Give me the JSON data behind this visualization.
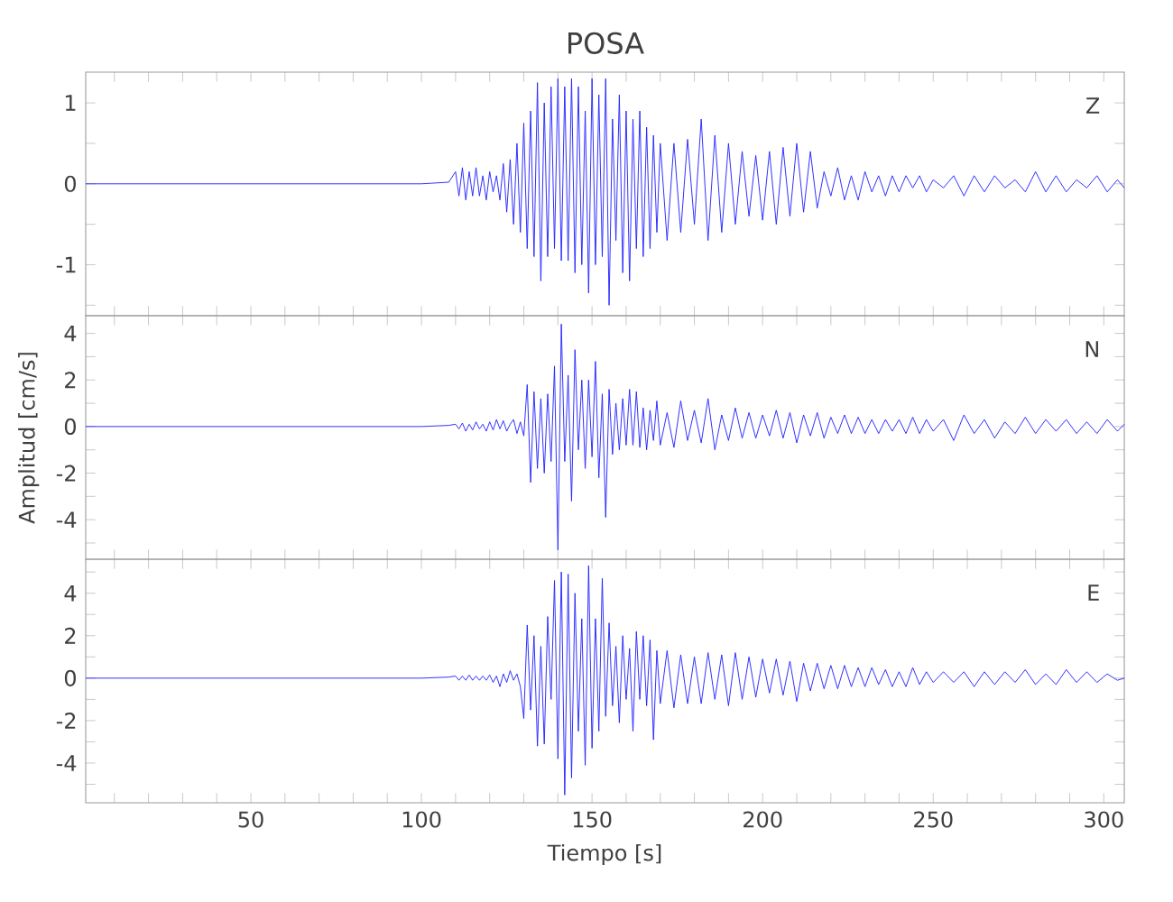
{
  "chart_data": [
    {
      "type": "line",
      "title": "POSA",
      "annotations": [
        "Z"
      ],
      "tick_labels": "y",
      "x": [
        1.6,
        20,
        40,
        60,
        80,
        100,
        108,
        110,
        111,
        112,
        113,
        114,
        115,
        116,
        117,
        118,
        119,
        120,
        121,
        122,
        123,
        124,
        125,
        126,
        127,
        128,
        129,
        130,
        131,
        132,
        133,
        134,
        135,
        136,
        137,
        138,
        139,
        140,
        141,
        142,
        143,
        144,
        145,
        146,
        147,
        148,
        149,
        150,
        151,
        152,
        153,
        154,
        155,
        156,
        157,
        158,
        159,
        160,
        161,
        162,
        163,
        164,
        165,
        166,
        167,
        168,
        169,
        170,
        172,
        174,
        176,
        178,
        180,
        182,
        184,
        186,
        188,
        190,
        192,
        194,
        196,
        198,
        200,
        202,
        204,
        206,
        208,
        210,
        212,
        214,
        216,
        218,
        220,
        222,
        224,
        226,
        228,
        230,
        232,
        234,
        236,
        238,
        240,
        242,
        244,
        246,
        248,
        250,
        253,
        256,
        259,
        262,
        265,
        268,
        271,
        274,
        277,
        280,
        283,
        286,
        289,
        292,
        295,
        298,
        301,
        304,
        306
      ],
      "series": [
        {
          "color": "#2222ff",
          "values": [
            0,
            0,
            0,
            0,
            0,
            0,
            0.02,
            0.15,
            -0.15,
            0.2,
            -0.2,
            0.15,
            -0.15,
            0.2,
            -0.15,
            0.1,
            -0.2,
            0.15,
            -0.1,
            0.1,
            -0.2,
            0.25,
            -0.35,
            0.3,
            -0.5,
            0.5,
            -0.6,
            0.75,
            -0.8,
            0.9,
            -0.9,
            1.25,
            -1.2,
            1.0,
            -0.9,
            1.2,
            -0.8,
            1.3,
            -0.95,
            1.2,
            -0.95,
            1.3,
            -1.1,
            1.2,
            -1.0,
            0.9,
            -1.35,
            1.3,
            -1.0,
            1.1,
            -0.9,
            1.3,
            -1.5,
            0.8,
            -0.7,
            1.1,
            -1.1,
            0.9,
            -1.2,
            0.8,
            -0.8,
            0.9,
            -0.9,
            0.7,
            -0.8,
            0.6,
            -0.6,
            0.5,
            -0.7,
            0.5,
            -0.6,
            0.55,
            -0.5,
            0.8,
            -0.7,
            0.6,
            -0.6,
            0.5,
            -0.5,
            0.4,
            -0.4,
            0.35,
            -0.45,
            0.4,
            -0.5,
            0.45,
            -0.4,
            0.5,
            -0.35,
            0.4,
            -0.3,
            0.15,
            -0.15,
            0.2,
            -0.2,
            0.1,
            -0.2,
            0.15,
            -0.1,
            0.1,
            -0.15,
            0.1,
            -0.1,
            0.1,
            -0.05,
            0.1,
            -0.1,
            0.05,
            -0.05,
            0.1,
            -0.15,
            0.1,
            -0.1,
            0.1,
            -0.05,
            0.05,
            -0.1,
            0.15,
            -0.1,
            0.1,
            -0.1,
            0.05,
            -0.05,
            0.1,
            -0.1,
            0.05,
            -0.05
          ]
        }
      ],
      "xlim": [
        1.6,
        306
      ],
      "ylim": [
        -1.63,
        1.38
      ],
      "xticks": [
        {
          "value": 10,
          "label": null
        },
        {
          "value": 20,
          "label": null
        },
        {
          "value": 30,
          "label": null
        },
        {
          "value": 40,
          "label": null
        },
        50,
        {
          "value": 60,
          "label": null
        },
        {
          "value": 70,
          "label": null
        },
        {
          "value": 80,
          "label": null
        },
        {
          "value": 90,
          "label": null
        },
        100,
        {
          "value": 110,
          "label": null
        },
        {
          "value": 120,
          "label": null
        },
        {
          "value": 130,
          "label": null
        },
        {
          "value": 140,
          "label": null
        },
        150,
        {
          "value": 160,
          "label": null
        },
        {
          "value": 170,
          "label": null
        },
        {
          "value": 180,
          "label": null
        },
        {
          "value": 190,
          "label": null
        },
        200,
        {
          "value": 210,
          "label": null
        },
        {
          "value": 220,
          "label": null
        },
        {
          "value": 230,
          "label": null
        },
        {
          "value": 240,
          "label": null
        },
        250,
        {
          "value": 260,
          "label": null
        },
        {
          "value": 270,
          "label": null
        },
        {
          "value": 280,
          "label": null
        },
        {
          "value": 290,
          "label": null
        },
        300
      ],
      "yticks": [
        {
          "value": -1.5,
          "label": null
        },
        -1,
        {
          "value": -0.5,
          "label": null
        },
        0,
        {
          "value": 0.5,
          "label": null
        },
        1
      ]
    },
    {
      "type": "line",
      "ylabel": "Amplitud [cm/s]",
      "annotations": [
        "N"
      ],
      "tick_labels": "y",
      "x": [
        1.6,
        20,
        40,
        60,
        80,
        100,
        108,
        110,
        111,
        112,
        113,
        114,
        115,
        116,
        117,
        118,
        119,
        120,
        121,
        122,
        123,
        124,
        125,
        126,
        127,
        128,
        129,
        130,
        131,
        132,
        133,
        134,
        135,
        136,
        137,
        138,
        139,
        140,
        141,
        142,
        143,
        144,
        145,
        146,
        147,
        148,
        149,
        150,
        151,
        152,
        153,
        154,
        155,
        156,
        157,
        158,
        159,
        160,
        161,
        162,
        163,
        164,
        165,
        166,
        167,
        168,
        169,
        170,
        172,
        174,
        176,
        178,
        180,
        182,
        184,
        186,
        188,
        190,
        192,
        194,
        196,
        198,
        200,
        202,
        204,
        206,
        208,
        210,
        212,
        214,
        216,
        218,
        220,
        222,
        224,
        226,
        228,
        230,
        232,
        234,
        236,
        238,
        240,
        242,
        244,
        246,
        248,
        250,
        253,
        256,
        259,
        262,
        265,
        268,
        271,
        274,
        277,
        280,
        283,
        286,
        289,
        292,
        295,
        298,
        301,
        304,
        306
      ],
      "series": [
        {
          "color": "#2222ff",
          "values": [
            0,
            0,
            0,
            0,
            0,
            0,
            0.05,
            0.1,
            -0.1,
            0.15,
            -0.2,
            0.1,
            -0.15,
            0.2,
            -0.1,
            0.1,
            -0.2,
            0.2,
            -0.15,
            0.3,
            -0.1,
            0.25,
            -0.2,
            0.1,
            0.3,
            -0.3,
            0.2,
            -0.4,
            1.8,
            -2.4,
            1.5,
            -1.8,
            1.2,
            -2.0,
            1.4,
            -1.5,
            2.6,
            -5.3,
            4.4,
            -1.5,
            2.2,
            -3.2,
            3.3,
            -1.0,
            2.0,
            -1.8,
            2.0,
            -1.3,
            2.8,
            -2.2,
            1.4,
            -3.9,
            1.6,
            -1.2,
            1.0,
            -1.0,
            1.2,
            -0.8,
            1.6,
            -0.8,
            1.5,
            -0.9,
            0.8,
            -1.0,
            0.7,
            -0.6,
            1.1,
            -0.8,
            0.6,
            -0.9,
            1.1,
            -0.6,
            0.7,
            -0.7,
            1.2,
            -1.0,
            0.5,
            -0.6,
            0.8,
            -0.5,
            0.6,
            -0.5,
            0.5,
            -0.4,
            0.7,
            -0.5,
            0.6,
            -0.7,
            0.5,
            -0.4,
            0.6,
            -0.5,
            0.4,
            -0.3,
            0.5,
            -0.3,
            0.4,
            -0.3,
            0.3,
            -0.3,
            0.3,
            -0.2,
            0.3,
            -0.3,
            0.4,
            -0.3,
            0.3,
            -0.2,
            0.3,
            -0.6,
            0.5,
            -0.3,
            0.3,
            -0.5,
            0.2,
            -0.3,
            0.4,
            -0.3,
            0.3,
            -0.2,
            0.3,
            -0.3,
            0.2,
            -0.3,
            0.3,
            -0.2,
            0.1
          ]
        }
      ],
      "xlim": [
        1.6,
        306
      ],
      "ylim": [
        -5.7,
        4.76
      ],
      "xticks": [
        {
          "value": 10,
          "label": null
        },
        {
          "value": 20,
          "label": null
        },
        {
          "value": 30,
          "label": null
        },
        {
          "value": 40,
          "label": null
        },
        50,
        {
          "value": 60,
          "label": null
        },
        {
          "value": 70,
          "label": null
        },
        {
          "value": 80,
          "label": null
        },
        {
          "value": 90,
          "label": null
        },
        100,
        {
          "value": 110,
          "label": null
        },
        {
          "value": 120,
          "label": null
        },
        {
          "value": 130,
          "label": null
        },
        {
          "value": 140,
          "label": null
        },
        150,
        {
          "value": 160,
          "label": null
        },
        {
          "value": 170,
          "label": null
        },
        {
          "value": 180,
          "label": null
        },
        {
          "value": 190,
          "label": null
        },
        200,
        {
          "value": 210,
          "label": null
        },
        {
          "value": 220,
          "label": null
        },
        {
          "value": 230,
          "label": null
        },
        {
          "value": 240,
          "label": null
        },
        250,
        {
          "value": 260,
          "label": null
        },
        {
          "value": 270,
          "label": null
        },
        {
          "value": 280,
          "label": null
        },
        {
          "value": 290,
          "label": null
        },
        300
      ],
      "yticks": [
        {
          "value": -5,
          "label": null
        },
        -4,
        {
          "value": -3,
          "label": null
        },
        -2,
        {
          "value": -1,
          "label": null
        },
        0,
        {
          "value": 1,
          "label": null
        },
        2,
        {
          "value": 3,
          "label": null
        },
        4
      ]
    },
    {
      "type": "line",
      "xlabel": "Tiempo [s]",
      "annotations": [
        "E"
      ],
      "x": [
        1.6,
        20,
        40,
        60,
        80,
        100,
        108,
        110,
        111,
        112,
        113,
        114,
        115,
        116,
        117,
        118,
        119,
        120,
        121,
        122,
        123,
        124,
        125,
        126,
        127,
        128,
        129,
        130,
        131,
        132,
        133,
        134,
        135,
        136,
        137,
        138,
        139,
        140,
        141,
        142,
        143,
        144,
        145,
        146,
        147,
        148,
        149,
        150,
        151,
        152,
        153,
        154,
        155,
        156,
        157,
        158,
        159,
        160,
        161,
        162,
        163,
        164,
        165,
        166,
        167,
        168,
        169,
        170,
        172,
        174,
        176,
        178,
        180,
        182,
        184,
        186,
        188,
        190,
        192,
        194,
        196,
        198,
        200,
        202,
        204,
        206,
        208,
        210,
        212,
        214,
        216,
        218,
        220,
        222,
        224,
        226,
        228,
        230,
        232,
        234,
        236,
        238,
        240,
        242,
        244,
        246,
        248,
        250,
        253,
        256,
        259,
        262,
        265,
        268,
        271,
        274,
        277,
        280,
        283,
        286,
        289,
        292,
        295,
        298,
        301,
        304,
        306
      ],
      "series": [
        {
          "color": "#2222ff",
          "values": [
            0,
            0,
            0,
            0,
            0,
            0,
            0.05,
            0.1,
            -0.1,
            0.1,
            -0.1,
            0.15,
            -0.1,
            0.1,
            -0.1,
            0.1,
            -0.1,
            0.15,
            -0.2,
            0.1,
            -0.4,
            0.2,
            -0.2,
            0.35,
            -0.1,
            0.2,
            -0.4,
            -1.9,
            2.5,
            -1.5,
            2.0,
            -3.2,
            1.5,
            -3.1,
            2.9,
            -1.0,
            4.6,
            -3.8,
            5.0,
            -5.5,
            4.9,
            -4.7,
            4.0,
            -2.5,
            2.8,
            -4.1,
            5.3,
            -3.3,
            2.8,
            -2.5,
            4.7,
            -1.8,
            2.6,
            -1.3,
            1.5,
            -2.1,
            2.0,
            -1.0,
            1.4,
            -2.5,
            2.2,
            -1.0,
            2.0,
            -1.3,
            1.8,
            -2.9,
            1.3,
            -1.2,
            1.3,
            -1.4,
            1.1,
            -1.2,
            1.0,
            -1.2,
            1.2,
            -1.0,
            1.1,
            -1.3,
            1.2,
            -1.0,
            1.0,
            -0.9,
            0.9,
            -0.7,
            0.9,
            -0.8,
            0.8,
            -1.1,
            0.7,
            -0.6,
            0.7,
            -0.5,
            0.6,
            -0.5,
            0.6,
            -0.4,
            0.5,
            -0.4,
            0.5,
            -0.3,
            0.4,
            -0.4,
            0.3,
            -0.4,
            0.5,
            -0.3,
            0.3,
            -0.2,
            0.3,
            -0.2,
            0.3,
            -0.4,
            0.3,
            -0.3,
            0.3,
            -0.2,
            0.4,
            -0.3,
            0.2,
            -0.3,
            0.4,
            -0.2,
            0.3,
            -0.2,
            0.2,
            -0.1,
            0
          ]
        }
      ],
      "xlim": [
        1.6,
        306
      ],
      "ylim": [
        -5.87,
        5.6
      ],
      "xticks": [
        {
          "value": 10,
          "label": null
        },
        {
          "value": 20,
          "label": null
        },
        {
          "value": 30,
          "label": null
        },
        {
          "value": 40,
          "label": null
        },
        50,
        {
          "value": 60,
          "label": null
        },
        {
          "value": 70,
          "label": null
        },
        {
          "value": 80,
          "label": null
        },
        {
          "value": 90,
          "label": null
        },
        100,
        {
          "value": 110,
          "label": null
        },
        {
          "value": 120,
          "label": null
        },
        {
          "value": 130,
          "label": null
        },
        {
          "value": 140,
          "label": null
        },
        150,
        {
          "value": 160,
          "label": null
        },
        {
          "value": 170,
          "label": null
        },
        {
          "value": 180,
          "label": null
        },
        {
          "value": 190,
          "label": null
        },
        200,
        {
          "value": 210,
          "label": null
        },
        {
          "value": 220,
          "label": null
        },
        {
          "value": 230,
          "label": null
        },
        {
          "value": 240,
          "label": null
        },
        250,
        {
          "value": 260,
          "label": null
        },
        {
          "value": 270,
          "label": null
        },
        {
          "value": 280,
          "label": null
        },
        {
          "value": 290,
          "label": null
        },
        300
      ],
      "yticks": [
        {
          "value": -5,
          "label": null
        },
        -4,
        {
          "value": -3,
          "label": null
        },
        -2,
        {
          "value": -1,
          "label": null
        },
        0,
        {
          "value": 1,
          "label": null
        },
        2,
        {
          "value": 3,
          "label": null
        },
        4,
        {
          "value": 5,
          "label": null
        }
      ]
    }
  ]
}
